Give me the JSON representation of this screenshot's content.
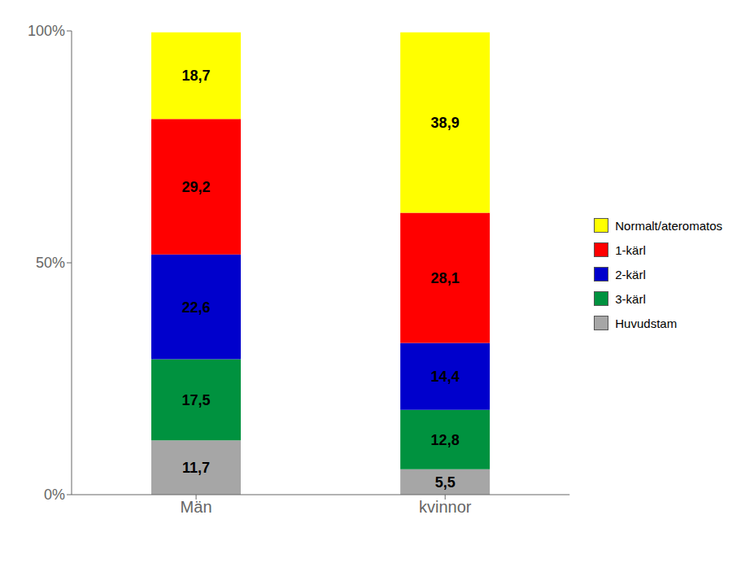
{
  "chart_data": {
    "type": "bar",
    "stacked": true,
    "categories": [
      "Män",
      "kvinnor"
    ],
    "series": [
      {
        "name": "Huvudstam",
        "color": "#a6a6a6",
        "values": [
          11.7,
          5.5
        ],
        "value_labels": [
          "11,7",
          "5,5"
        ]
      },
      {
        "name": "3-kärl",
        "color": "#00923f",
        "values": [
          17.5,
          12.8
        ],
        "value_labels": [
          "17,5",
          "12,8"
        ]
      },
      {
        "name": "2-kärl",
        "color": "#0000cc",
        "values": [
          22.6,
          14.4
        ],
        "value_labels": [
          "22,6",
          "14,4"
        ]
      },
      {
        "name": "1-kärl",
        "color": "#ff0000",
        "values": [
          29.2,
          28.1
        ],
        "value_labels": [
          "29,2",
          "28,1"
        ]
      },
      {
        "name": "Normalt/ateromatos",
        "color": "#ffff00",
        "values": [
          18.7,
          38.9
        ],
        "value_labels": [
          "18,7",
          "38,9"
        ]
      }
    ],
    "ylim": [
      0,
      100
    ],
    "yticks": [
      {
        "value": 0,
        "label": "0%"
      },
      {
        "value": 50,
        "label": "50%"
      },
      {
        "value": 100,
        "label": "100%"
      }
    ],
    "grid": false,
    "legend": "right",
    "data_labels": true
  }
}
